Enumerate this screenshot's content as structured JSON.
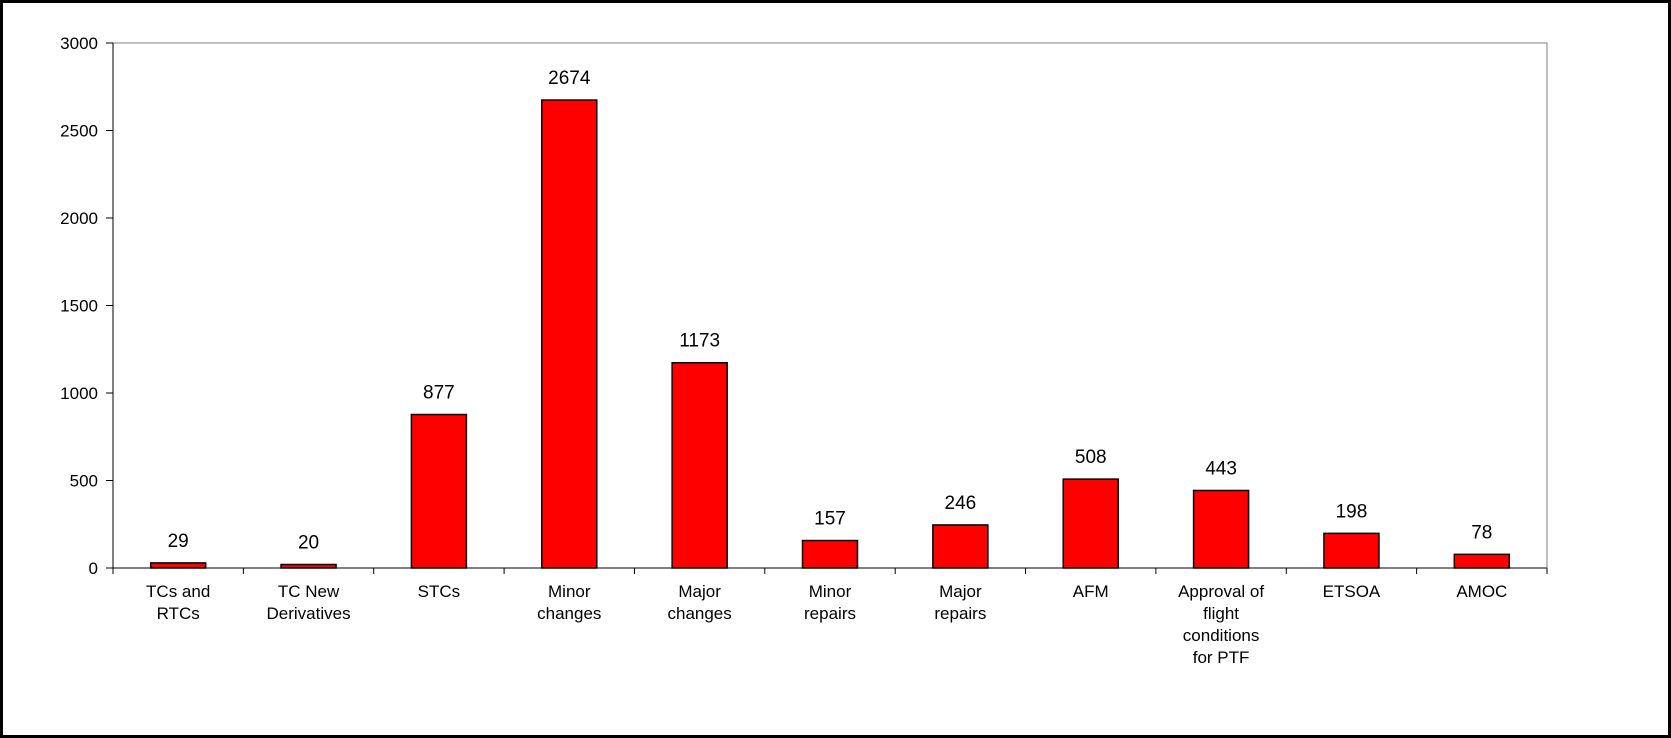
{
  "chart_data": {
    "type": "bar",
    "title": "",
    "xlabel": "",
    "ylabel": "",
    "ylim": [
      0,
      3000
    ],
    "yticks": [
      0,
      500,
      1000,
      1500,
      2000,
      2500,
      3000
    ],
    "ytick_labels": [
      "0",
      "500",
      "1000",
      "1500",
      "2000",
      "2500",
      "3000"
    ],
    "grid": false,
    "legend": "none",
    "categories": [
      [
        "TCs and",
        "RTCs"
      ],
      [
        "TC New",
        "Derivatives"
      ],
      [
        "STCs"
      ],
      [
        "Minor",
        "changes"
      ],
      [
        "Major",
        "changes"
      ],
      [
        "Minor",
        "repairs"
      ],
      [
        "Major",
        "repairs"
      ],
      [
        "AFM"
      ],
      [
        "Approval of",
        "flight",
        "conditions",
        "for PTF"
      ],
      [
        "ETSOA"
      ],
      [
        "AMOC"
      ]
    ],
    "values": [
      29,
      20,
      877,
      2674,
      1173,
      157,
      246,
      508,
      443,
      198,
      78
    ],
    "data_labels": [
      "29",
      "20",
      "877",
      "2674",
      "1173",
      "157",
      "246",
      "508",
      "443",
      "198",
      "78"
    ],
    "colors": {
      "bar_fill": "#ff0000",
      "bar_stroke": "#000000",
      "axis": "#000000",
      "plot_border": "#808080"
    }
  }
}
